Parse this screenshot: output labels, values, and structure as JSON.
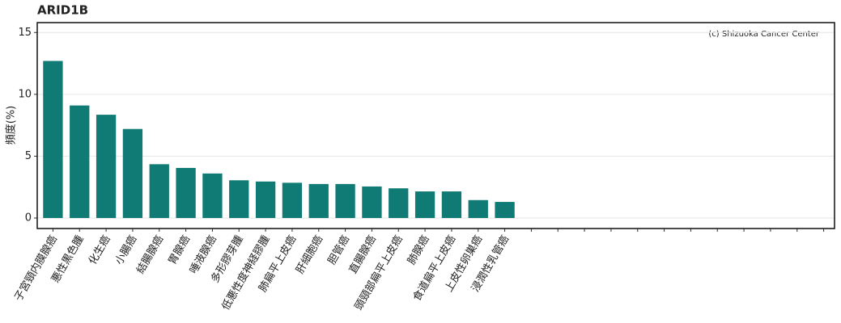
{
  "chart_data": {
    "type": "bar",
    "title": "ARID1B",
    "y_label": "頻度(%)",
    "annotation": "(c) Shizuoka Cancer Center",
    "categories": [
      "子宮頸内膜腺癌",
      "悪性黒色腫",
      "化生癌",
      "小腸癌",
      "結腸腺癌",
      "胃腺癌",
      "唾液腺癌",
      "多形膠芽腫",
      "低悪性度神経膠腫",
      "肺扁平上皮癌",
      "肝細胞癌",
      "胆管癌",
      "直腸腺癌",
      "頭頸部扁平上皮癌",
      "肺腺癌",
      "食道扁平上皮癌",
      "上皮性卵巣癌",
      "浸潤性乳管癌",
      null,
      null,
      null,
      null,
      null,
      null,
      null,
      null,
      null,
      null,
      null,
      null
    ],
    "values": [
      12.7,
      9.1,
      8.35,
      7.2,
      4.35,
      4.05,
      3.6,
      3.05,
      2.95,
      2.85,
      2.75,
      2.75,
      2.55,
      2.4,
      2.15,
      2.15,
      1.45,
      1.3,
      null,
      null,
      null,
      null,
      null,
      null,
      null,
      null,
      null,
      null,
      null,
      null
    ],
    "color": "#0f7b74",
    "ylim": [
      -0.85,
      15.8
    ],
    "yticks": [
      0,
      5,
      10,
      15
    ],
    "grid": true
  }
}
